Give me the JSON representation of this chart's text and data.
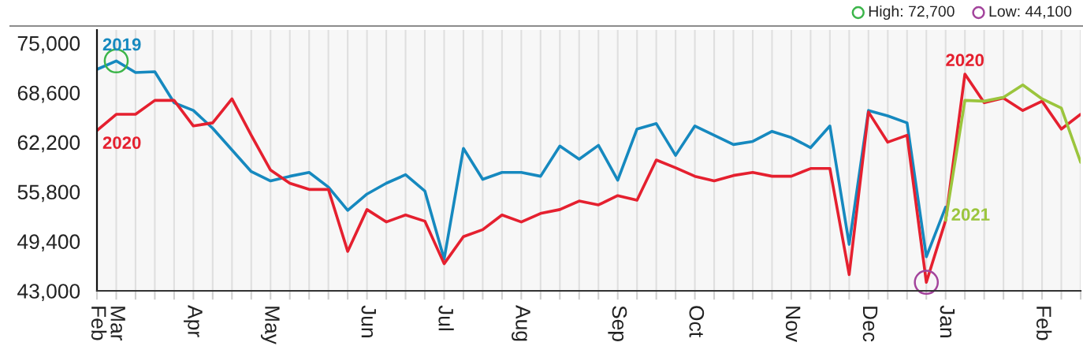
{
  "chart_data": {
    "type": "line",
    "categories": [
      "Feb",
      "Mar",
      null,
      null,
      null,
      "Apr",
      null,
      null,
      null,
      "May",
      null,
      null,
      null,
      null,
      "Jun",
      null,
      null,
      null,
      "Jul",
      null,
      null,
      null,
      "Aug",
      null,
      null,
      null,
      null,
      "Sep",
      null,
      null,
      null,
      "Oct",
      null,
      null,
      null,
      null,
      "Nov",
      null,
      null,
      null,
      "Dec",
      null,
      null,
      null,
      "Jan",
      null,
      null,
      null,
      null,
      "Feb",
      null,
      null
    ],
    "series": [
      {
        "name": "2019",
        "color": "#1689bf",
        "values": [
          71600,
          72700,
          71200,
          71300,
          67300,
          66300,
          64000,
          61200,
          58400,
          57200,
          57800,
          58300,
          56400,
          53400,
          55500,
          56900,
          58000,
          55900,
          47100,
          61400,
          57400,
          58300,
          58300,
          57800,
          61700,
          60000,
          61800,
          57300,
          63900,
          64600,
          60500,
          64300,
          63100,
          61900,
          62300,
          63600,
          62800,
          61500,
          64300,
          49000,
          66300,
          65600,
          64700,
          47400,
          53800,
          null,
          null,
          null,
          null,
          null,
          null,
          null
        ]
      },
      {
        "name": "2020",
        "color": "#e5202f",
        "values": [
          63700,
          65800,
          65800,
          67600,
          67600,
          64300,
          64700,
          67800,
          63100,
          58600,
          56900,
          56100,
          56100,
          48100,
          53500,
          51900,
          52800,
          52000,
          46500,
          50000,
          50900,
          52800,
          51900,
          53000,
          53500,
          54600,
          54100,
          55300,
          54700,
          59900,
          58900,
          57800,
          57200,
          57900,
          58300,
          57800,
          57800,
          58800,
          58800,
          45100,
          66100,
          62200,
          63100,
          44100,
          52100,
          71000,
          67300,
          67900,
          66300,
          67500,
          63900,
          65800
        ]
      },
      {
        "name": "2021",
        "color": "#9bc53d",
        "values": [
          null,
          null,
          null,
          null,
          null,
          null,
          null,
          null,
          null,
          null,
          null,
          null,
          null,
          null,
          null,
          null,
          null,
          null,
          null,
          null,
          null,
          null,
          null,
          null,
          null,
          null,
          null,
          null,
          null,
          null,
          null,
          null,
          null,
          null,
          null,
          null,
          null,
          null,
          null,
          null,
          null,
          null,
          null,
          null,
          52100,
          67600,
          67500,
          68000,
          69600,
          67800,
          66600,
          59600
        ]
      }
    ],
    "ylim": [
      43000,
      76700
    ],
    "yticks": [
      {
        "value": 43000,
        "label": "43,000"
      },
      {
        "value": 49400,
        "label": "49,400"
      },
      {
        "value": 55800,
        "label": "55,800"
      },
      {
        "value": 62200,
        "label": "62,200"
      },
      {
        "value": 68600,
        "label": "68,600"
      },
      {
        "value": 75000,
        "label": "75,000"
      }
    ],
    "grid": "x",
    "annotations": [
      {
        "text": "2020",
        "y": 71000
      },
      "High: 72,700",
      "Low: 44,100"
    ]
  }
}
